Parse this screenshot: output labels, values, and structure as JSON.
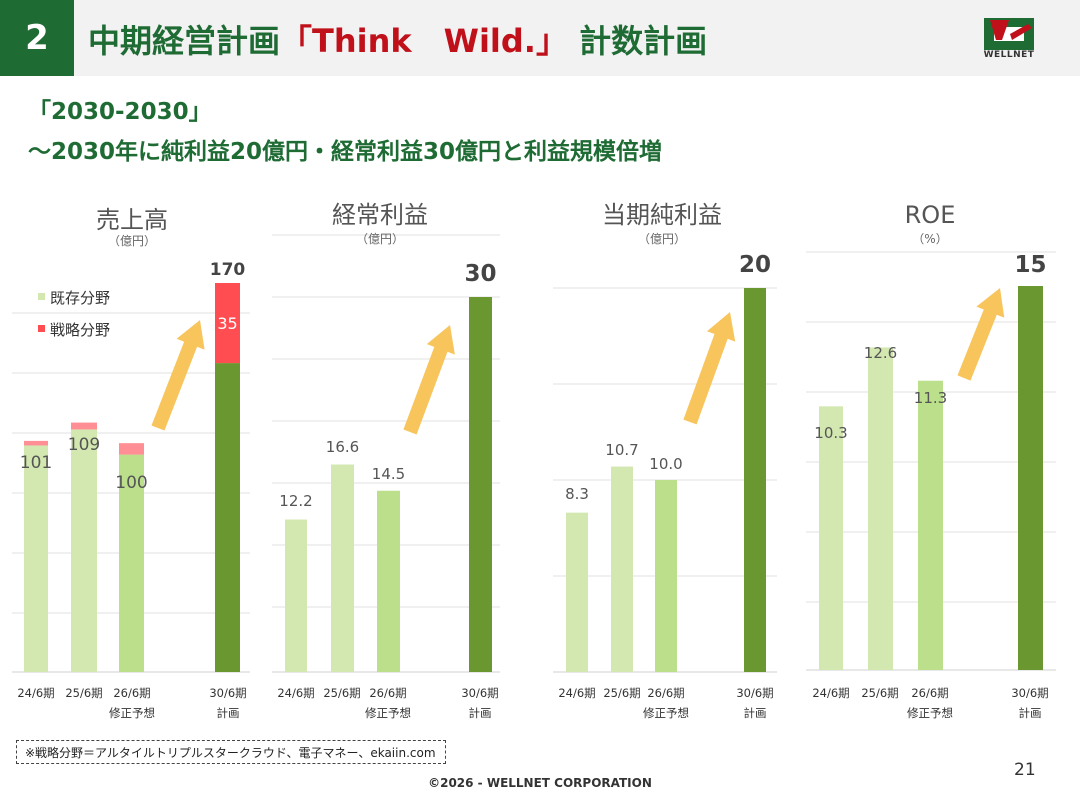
{
  "header": {
    "section_number": "2",
    "title_main": "中期経営計画",
    "title_highlight": "「Think　Wild.」",
    "title_tail": " 計数計画",
    "logo_text": "WELLNET"
  },
  "subtitle": {
    "line1": "「2030-2030」",
    "line2": "～2030年に純利益20億円・経常利益30億円と利益規模倍増"
  },
  "colors": {
    "header_green": "#1e6b34",
    "title_red": "#c0101a",
    "bar_light": "#d3e8b0",
    "bar_mid": "#bcdf8c",
    "bar_dark": "#6a972f",
    "bar_strategy": "#ff4d52",
    "bar_strategy_light": "#ff8f94",
    "arrow": "#f7c55c"
  },
  "legend": {
    "existing": "既存分野",
    "strategy": "戦略分野"
  },
  "chart_data": [
    {
      "type": "bar",
      "stacked": true,
      "title": "売上高",
      "unit": "（億円）",
      "categories": [
        "24/6期",
        "25/6期",
        "26/6期",
        "30/6期"
      ],
      "category_sublabels": [
        "",
        "",
        "修正予想",
        "計画"
      ],
      "series": [
        {
          "name": "既存分野",
          "values": [
            99,
            106,
            95,
            135
          ]
        },
        {
          "name": "戦略分野",
          "values": [
            2,
            3,
            5,
            35
          ]
        }
      ],
      "totals": [
        "101",
        "109",
        "100",
        "170"
      ],
      "segment_labels": [
        "",
        "",
        "",
        "35"
      ],
      "ylim": [
        0,
        170
      ],
      "grid": true,
      "legend_position": "top-left"
    },
    {
      "type": "bar",
      "title": "経常利益",
      "unit": "（億円）",
      "categories": [
        "24/6期",
        "25/6期",
        "26/6期",
        "30/6期"
      ],
      "category_sublabels": [
        "",
        "",
        "修正予想",
        "計画"
      ],
      "values": [
        12.2,
        16.6,
        14.5,
        30
      ],
      "value_labels": [
        "12.2",
        "16.6",
        "14.5",
        "30"
      ],
      "ylim": [
        0,
        30
      ],
      "grid": true
    },
    {
      "type": "bar",
      "title": "当期純利益",
      "unit": "（億円）",
      "categories": [
        "24/6期",
        "25/6期",
        "26/6期",
        "30/6期"
      ],
      "category_sublabels": [
        "",
        "",
        "修正予想",
        "計画"
      ],
      "values": [
        8.3,
        10.7,
        10.0,
        20
      ],
      "value_labels": [
        "8.3",
        "10.7",
        "10.0",
        "20"
      ],
      "ylim": [
        0,
        20
      ],
      "grid": true
    },
    {
      "type": "bar",
      "title": "ROE",
      "unit": "（%）",
      "categories": [
        "24/6期",
        "25/6期",
        "26/6期",
        "30/6期"
      ],
      "category_sublabels": [
        "",
        "",
        "修正予想",
        "計画"
      ],
      "values": [
        10.3,
        12.6,
        11.3,
        15
      ],
      "value_labels": [
        "10.3",
        "12.6",
        "11.3",
        "15"
      ],
      "ylim": [
        0,
        15
      ],
      "grid": true
    }
  ],
  "footnote": "※戦略分野＝アルタイルトリプルスタークラウド、電子マネー、ekaiin.com",
  "page_number": "21",
  "copyright": "©2026 - WELLNET CORPORATION"
}
